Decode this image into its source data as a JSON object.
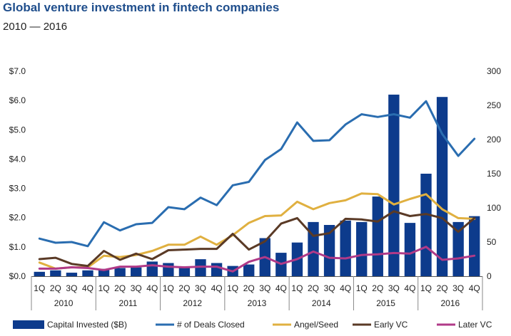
{
  "chart_data": {
    "type": "bar",
    "title": "Global venture investment in fintech companies",
    "subtitle": "2010 — 2016",
    "quarters": [
      "1Q",
      "2Q",
      "3Q",
      "4Q",
      "1Q",
      "2Q",
      "3Q",
      "4Q",
      "1Q",
      "2Q",
      "3Q",
      "4Q",
      "1Q",
      "2Q",
      "3Q",
      "4Q",
      "1Q",
      "2Q",
      "3Q",
      "4Q",
      "1Q",
      "2Q",
      "3Q",
      "4Q",
      "1Q",
      "2Q",
      "3Q",
      "4Q"
    ],
    "years": [
      "2010",
      "2011",
      "2012",
      "2013",
      "2014",
      "2015",
      "2016"
    ],
    "y_left": {
      "min": 0,
      "max": 7,
      "ticks": [
        "$0.0",
        "$1.0",
        "$2.0",
        "$3.0",
        "$4.0",
        "$5.0",
        "$6.0",
        "$7.0"
      ]
    },
    "y_right": {
      "min": 0,
      "max": 300,
      "ticks": [
        "0",
        "50",
        "100",
        "150",
        "200",
        "250",
        "300"
      ]
    },
    "series": [
      {
        "name": "Capital Invested ($B)",
        "kind": "bar",
        "axis": "left",
        "color": "#0d3b8c",
        "values": [
          0.15,
          0.2,
          0.12,
          0.2,
          0.25,
          0.28,
          0.3,
          0.5,
          0.45,
          0.3,
          0.58,
          0.45,
          0.35,
          0.4,
          1.3,
          0.8,
          1.15,
          1.85,
          1.75,
          1.9,
          1.85,
          2.72,
          6.2,
          1.82,
          3.5,
          6.12,
          1.85,
          2.05
        ]
      },
      {
        "name": "# of Deals Closed",
        "kind": "line",
        "axis": "right",
        "color": "#2a6db0",
        "values": [
          55,
          49,
          50,
          44,
          79,
          67,
          76,
          78,
          101,
          98,
          115,
          104,
          133,
          138,
          170,
          186,
          225,
          198,
          199,
          222,
          237,
          233,
          237,
          232,
          256,
          208,
          176,
          201
        ]
      },
      {
        "name": "Angel/Seed",
        "kind": "line",
        "axis": "right",
        "color": "#e0b040",
        "values": [
          20,
          11,
          13,
          13,
          30,
          28,
          31,
          37,
          46,
          46,
          58,
          46,
          60,
          78,
          88,
          89,
          109,
          98,
          107,
          111,
          121,
          120,
          105,
          113,
          120,
          98,
          85,
          84
        ]
      },
      {
        "name": "Early VC",
        "kind": "line",
        "axis": "right",
        "color": "#5a3a26",
        "values": [
          25,
          27,
          18,
          15,
          37,
          24,
          33,
          25,
          38,
          39,
          40,
          40,
          62,
          39,
          51,
          77,
          85,
          59,
          63,
          84,
          83,
          80,
          95,
          88,
          91,
          85,
          65,
          85
        ]
      },
      {
        "name": "Later VC",
        "kind": "line",
        "axis": "right",
        "color": "#b03a88",
        "values": [
          11,
          11,
          13,
          12,
          9,
          14,
          14,
          16,
          14,
          13,
          14,
          14,
          7,
          21,
          28,
          18,
          25,
          36,
          27,
          26,
          31,
          32,
          34,
          33,
          43,
          24,
          26,
          30
        ]
      }
    ],
    "legend_position": "bottom"
  }
}
